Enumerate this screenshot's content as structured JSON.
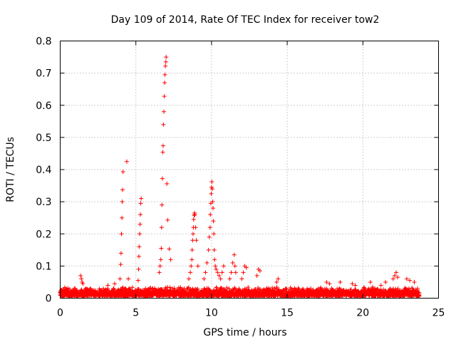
{
  "chart_data": {
    "type": "scatter",
    "title": "Day 109 of 2014, Rate Of TEC Index for receiver tow2",
    "xlabel": "GPS time / hours",
    "ylabel": "ROTI / TECUs",
    "xlim": [
      0,
      25
    ],
    "ylim": [
      0,
      0.8
    ],
    "xticks": [
      "0",
      "5",
      "10",
      "15",
      "20",
      "25"
    ],
    "yticks": [
      "0",
      "0.1",
      "0.2",
      "0.3",
      "0.4",
      "0.5",
      "0.6",
      "0.7",
      "0.8"
    ],
    "grid": true,
    "marker": "plus",
    "color": "#ff0000",
    "baseline": {
      "x_start": 0,
      "x_end": 23.75,
      "typical_max": 0.035,
      "typical_min": 0.005
    },
    "series": [
      {
        "x": [
          1.35,
          1.4,
          1.45,
          1.5,
          3.15,
          3.6,
          3.95,
          4.0,
          4.02,
          4.05,
          4.08,
          4.1,
          4.12,
          4.15,
          4.4,
          4.5,
          5.15,
          5.18,
          5.2,
          5.22,
          5.25,
          5.28,
          5.3,
          5.32,
          5.35,
          6.55,
          6.6,
          6.65,
          6.68,
          6.7,
          6.72,
          6.75,
          6.78,
          6.8,
          6.82,
          6.85,
          6.88,
          6.9,
          6.92,
          6.95,
          6.98,
          7.0,
          7.05,
          7.1,
          7.2,
          7.3,
          8.5,
          8.6,
          8.65,
          8.7,
          8.72,
          8.75,
          8.78,
          8.8,
          8.82,
          8.85,
          8.88,
          8.9,
          8.95,
          9.0,
          9.1,
          9.5,
          9.6,
          9.7,
          9.8,
          9.85,
          9.9,
          9.92,
          9.95,
          9.98,
          10.0,
          10.02,
          10.05,
          10.08,
          10.1,
          10.12,
          10.15,
          10.18,
          10.2,
          10.25,
          10.3,
          10.4,
          10.5,
          10.6,
          10.7,
          10.8,
          11.2,
          11.3,
          11.4,
          11.5,
          11.55,
          11.6,
          12.0,
          12.1,
          12.2,
          12.3,
          13.0,
          13.1,
          13.2,
          14.3,
          14.4,
          17.6,
          17.8,
          18.5,
          19.3,
          19.5,
          20.5,
          21.2,
          21.5,
          22.0,
          22.1,
          22.2,
          22.3,
          22.9,
          23.1,
          23.4
        ],
        "y": [
          0.07,
          0.06,
          0.05,
          0.045,
          0.04,
          0.045,
          0.06,
          0.105,
          0.14,
          0.2,
          0.25,
          0.3,
          0.337,
          0.393,
          0.425,
          0.06,
          0.055,
          0.09,
          0.13,
          0.16,
          0.2,
          0.23,
          0.26,
          0.295,
          0.31,
          0.08,
          0.1,
          0.12,
          0.155,
          0.22,
          0.29,
          0.372,
          0.454,
          0.474,
          0.54,
          0.58,
          0.628,
          0.67,
          0.695,
          0.722,
          0.735,
          0.75,
          0.356,
          0.243,
          0.153,
          0.12,
          0.06,
          0.08,
          0.1,
          0.12,
          0.15,
          0.18,
          0.2,
          0.22,
          0.245,
          0.258,
          0.265,
          0.26,
          0.22,
          0.18,
          0.1,
          0.06,
          0.08,
          0.11,
          0.15,
          0.19,
          0.22,
          0.26,
          0.295,
          0.325,
          0.345,
          0.362,
          0.34,
          0.3,
          0.28,
          0.24,
          0.2,
          0.15,
          0.12,
          0.1,
          0.09,
          0.08,
          0.07,
          0.06,
          0.08,
          0.1,
          0.06,
          0.08,
          0.11,
          0.135,
          0.1,
          0.08,
          0.06,
          0.08,
          0.1,
          0.095,
          0.07,
          0.09,
          0.085,
          0.05,
          0.06,
          0.05,
          0.045,
          0.05,
          0.045,
          0.04,
          0.05,
          0.04,
          0.05,
          0.06,
          0.07,
          0.08,
          0.065,
          0.06,
          0.055,
          0.05
        ]
      }
    ]
  }
}
